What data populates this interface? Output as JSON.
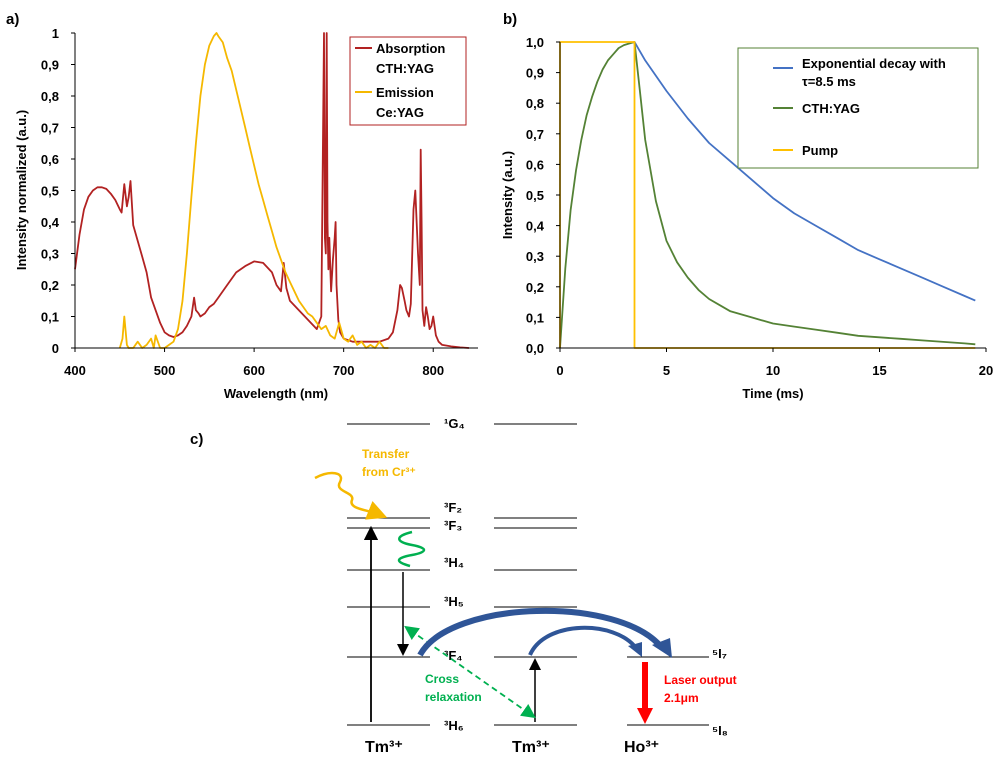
{
  "chart_data": [
    {
      "id": "a",
      "type": "line",
      "panel_label": "a)",
      "xlabel": "Wavelength (nm)",
      "ylabel": "Intensity normalized (a.u.)",
      "xlim": [
        400,
        850
      ],
      "ylim": [
        0,
        1
      ],
      "xticks": [
        "400",
        "500",
        "600",
        "700",
        "800"
      ],
      "xtick_values": [
        400,
        500,
        600,
        700,
        800
      ],
      "yticks": [
        "0",
        "0,1",
        "0,2",
        "0,3",
        "0,4",
        "0,5",
        "0,6",
        "0,7",
        "0,8",
        "0,9",
        "1"
      ],
      "ytick_values": [
        0,
        0.1,
        0.2,
        0.3,
        0.4,
        0.5,
        0.6,
        0.7,
        0.8,
        0.9,
        1.0
      ],
      "grid": false,
      "legend_position": "top-right",
      "series": [
        {
          "name": "Absorption CTH:YAG",
          "legend_lines": [
            "Absorption",
            "CTH:YAG"
          ],
          "color": "#b22222",
          "x": [
            400,
            405,
            410,
            415,
            420,
            425,
            430,
            435,
            440,
            445,
            450,
            452,
            455,
            458,
            460,
            462,
            465,
            470,
            475,
            480,
            485,
            490,
            495,
            500,
            505,
            510,
            515,
            520,
            525,
            530,
            533,
            535,
            538,
            540,
            545,
            550,
            555,
            560,
            570,
            580,
            590,
            600,
            610,
            620,
            625,
            630,
            633,
            636,
            640,
            650,
            660,
            670,
            675,
            678,
            679,
            680,
            681,
            682,
            683,
            684,
            686,
            688,
            690,
            691,
            692,
            694,
            696,
            700,
            710,
            720,
            730,
            740,
            750,
            755,
            760,
            763,
            765,
            768,
            770,
            773,
            775,
            778,
            780,
            783,
            785,
            786,
            787,
            788,
            790,
            792,
            794,
            796,
            798,
            800,
            803,
            806,
            810,
            820,
            830,
            840
          ],
          "y": [
            0.25,
            0.36,
            0.44,
            0.48,
            0.5,
            0.51,
            0.51,
            0.505,
            0.49,
            0.47,
            0.44,
            0.43,
            0.52,
            0.45,
            0.48,
            0.53,
            0.39,
            0.34,
            0.29,
            0.24,
            0.16,
            0.12,
            0.08,
            0.05,
            0.04,
            0.035,
            0.04,
            0.05,
            0.07,
            0.1,
            0.16,
            0.12,
            0.11,
            0.1,
            0.11,
            0.13,
            0.14,
            0.16,
            0.2,
            0.24,
            0.26,
            0.275,
            0.27,
            0.24,
            0.2,
            0.18,
            0.27,
            0.19,
            0.15,
            0.12,
            0.09,
            0.06,
            0.1,
            1.0,
            0.35,
            0.3,
            1.0,
            0.4,
            0.25,
            0.35,
            0.18,
            0.28,
            0.35,
            0.4,
            0.2,
            0.09,
            0.05,
            0.03,
            0.02,
            0.02,
            0.02,
            0.02,
            0.03,
            0.05,
            0.12,
            0.2,
            0.19,
            0.15,
            0.12,
            0.1,
            0.14,
            0.44,
            0.5,
            0.3,
            0.2,
            0.63,
            0.4,
            0.12,
            0.07,
            0.13,
            0.1,
            0.06,
            0.07,
            0.1,
            0.04,
            0.02,
            0.01,
            0.005,
            0.002,
            0.0
          ]
        },
        {
          "name": "Emission Ce:YAG",
          "legend_lines": [
            "Emission",
            "Ce:YAG"
          ],
          "color": "#f5b800",
          "x": [
            450,
            453,
            455,
            458,
            460,
            465,
            470,
            475,
            480,
            485,
            488,
            490,
            495,
            500,
            505,
            510,
            515,
            520,
            525,
            530,
            535,
            540,
            545,
            550,
            555,
            558,
            560,
            565,
            570,
            575,
            580,
            585,
            590,
            595,
            600,
            605,
            610,
            615,
            620,
            625,
            630,
            635,
            640,
            645,
            650,
            655,
            660,
            665,
            670,
            675,
            680,
            685,
            690,
            695,
            700,
            705,
            710,
            715,
            720,
            725,
            730,
            735,
            740,
            745,
            750
          ],
          "y": [
            0.0,
            0.03,
            0.1,
            0.01,
            0.0,
            0.0,
            0.02,
            0.0,
            0.01,
            0.03,
            0.0,
            0.04,
            0.0,
            0.0,
            0.01,
            0.02,
            0.06,
            0.15,
            0.3,
            0.48,
            0.65,
            0.8,
            0.9,
            0.96,
            0.99,
            1.0,
            0.99,
            0.97,
            0.92,
            0.88,
            0.82,
            0.76,
            0.7,
            0.64,
            0.58,
            0.52,
            0.47,
            0.42,
            0.37,
            0.32,
            0.28,
            0.24,
            0.21,
            0.18,
            0.15,
            0.13,
            0.11,
            0.1,
            0.08,
            0.06,
            0.07,
            0.04,
            0.03,
            0.08,
            0.03,
            0.02,
            0.04,
            0.01,
            0.02,
            0.0,
            0.01,
            0.0,
            0.02,
            0.0,
            0.0
          ]
        }
      ]
    },
    {
      "id": "b",
      "type": "line",
      "panel_label": "b)",
      "xlabel": "Time (ms)",
      "ylabel": "Intensity (a.u.)",
      "xlim": [
        0,
        20
      ],
      "ylim": [
        0,
        1
      ],
      "xticks": [
        "0",
        "5",
        "10",
        "15",
        "20"
      ],
      "xtick_values": [
        0,
        5,
        10,
        15,
        20
      ],
      "yticks": [
        "0,0",
        "0,1",
        "0,2",
        "0,3",
        "0,4",
        "0,5",
        "0,6",
        "0,7",
        "0,8",
        "0,9",
        "1,0"
      ],
      "ytick_values": [
        0,
        0.1,
        0.2,
        0.3,
        0.4,
        0.5,
        0.6,
        0.7,
        0.8,
        0.9,
        1.0
      ],
      "grid": false,
      "legend_position": "top-right",
      "series": [
        {
          "name": "Exponential decay with τ=8.5 ms",
          "legend_lines": [
            "Exponential decay with",
            "τ=8.5 ms"
          ],
          "color": "#4472c4",
          "x": [
            3.5,
            4,
            5,
            6,
            7,
            8,
            9,
            10,
            11,
            12,
            13,
            14,
            15,
            16,
            17,
            18,
            19,
            19.5
          ],
          "y": [
            1.0,
            0.94,
            0.84,
            0.75,
            0.67,
            0.61,
            0.55,
            0.49,
            0.44,
            0.4,
            0.36,
            0.32,
            0.29,
            0.26,
            0.23,
            0.2,
            0.17,
            0.155
          ]
        },
        {
          "name": "CTH:YAG",
          "legend_lines": [
            "CTH:YAG"
          ],
          "color": "#548235",
          "x": [
            0,
            0.25,
            0.5,
            0.75,
            1.0,
            1.25,
            1.5,
            1.75,
            2.0,
            2.25,
            2.5,
            2.75,
            3.0,
            3.25,
            3.5,
            3.75,
            4.0,
            4.5,
            5.0,
            5.5,
            6.0,
            6.5,
            7.0,
            7.5,
            8.0,
            9.0,
            10.0,
            11.0,
            12.0,
            13.0,
            14.0,
            15.0,
            16.0,
            17.0,
            18.0,
            19.0,
            19.5
          ],
          "y": [
            0.0,
            0.26,
            0.45,
            0.58,
            0.68,
            0.76,
            0.82,
            0.87,
            0.91,
            0.94,
            0.96,
            0.98,
            0.99,
            0.995,
            1.0,
            0.84,
            0.68,
            0.48,
            0.35,
            0.28,
            0.23,
            0.19,
            0.16,
            0.14,
            0.12,
            0.1,
            0.08,
            0.07,
            0.06,
            0.05,
            0.04,
            0.035,
            0.03,
            0.025,
            0.02,
            0.015,
            0.012
          ]
        },
        {
          "name": "Pump",
          "legend_lines": [
            "Pump"
          ],
          "color": "#ffc000",
          "x": [
            0,
            0,
            3.5,
            3.5,
            19.5
          ],
          "y": [
            0,
            1.0,
            1.0,
            0,
            0
          ]
        }
      ]
    },
    {
      "id": "c",
      "type": "diagram",
      "panel_label": "c)",
      "tm_levels": [
        "¹G₄",
        "³F₂",
        "³F₃",
        "³H₄",
        "³H₅",
        "³F₄",
        "³H₆"
      ],
      "ho_levels": [
        "⁵I₇",
        "⁵I₈"
      ],
      "ions": [
        "Tm³⁺",
        "Tm³⁺",
        "Ho³⁺"
      ],
      "annotations": {
        "transfer": [
          "Transfer",
          "from Cr³⁺"
        ],
        "cross": [
          "Cross",
          "relaxation"
        ],
        "laser": [
          "Laser output",
          "2.1μm"
        ]
      },
      "colors": {
        "transfer": "#f5b800",
        "cross": "#00b050",
        "laser": "#ff0000",
        "energy_transfer": "#2f5597"
      }
    }
  ]
}
